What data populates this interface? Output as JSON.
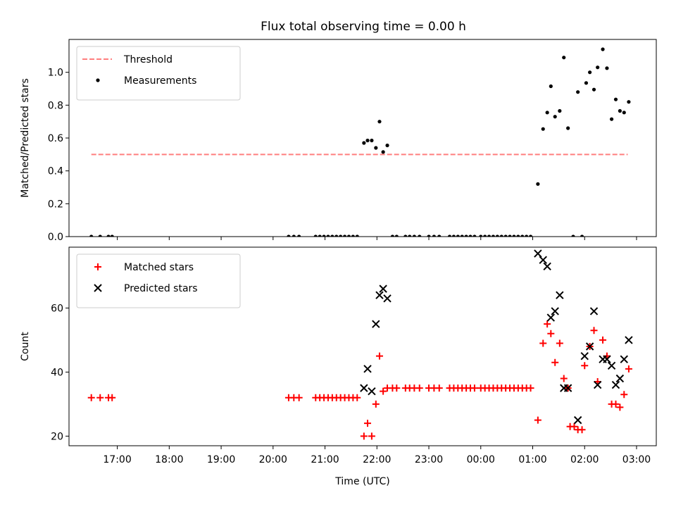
{
  "figure_title": "Flux total observing time = 0.00 h",
  "chart_data": [
    {
      "type": "scatter",
      "ylabel": "Matched/Predicted stars",
      "xlabel": "",
      "x_unit": "hours (UTC) counted continuously from 16:00",
      "xlim": [
        16.07,
        27.38
      ],
      "ylim": [
        0,
        1.2
      ],
      "yticks": [
        0.0,
        0.2,
        0.4,
        0.6,
        0.8,
        1.0
      ],
      "ytick_labels": [
        "0.0",
        "0.2",
        "0.4",
        "0.6",
        "0.8",
        "1.0"
      ],
      "legend_position": "upper-left",
      "threshold": {
        "name": "Threshold",
        "value": 0.5,
        "x_range": [
          16.5,
          26.83
        ],
        "color": "#ff7f7f",
        "style": "dashed"
      },
      "series": [
        {
          "name": "Measurements",
          "marker": "dot",
          "color": "#000000",
          "points": [
            [
              16.5,
              0
            ],
            [
              16.67,
              0
            ],
            [
              16.83,
              0
            ],
            [
              16.9,
              0
            ],
            [
              20.3,
              0
            ],
            [
              20.4,
              0
            ],
            [
              20.5,
              0
            ],
            [
              20.82,
              0
            ],
            [
              20.9,
              0
            ],
            [
              20.98,
              0
            ],
            [
              21.06,
              0
            ],
            [
              21.14,
              0
            ],
            [
              21.22,
              0
            ],
            [
              21.3,
              0
            ],
            [
              21.38,
              0
            ],
            [
              21.46,
              0
            ],
            [
              21.54,
              0
            ],
            [
              21.62,
              0
            ],
            [
              21.75,
              0.57
            ],
            [
              21.82,
              0.585
            ],
            [
              21.9,
              0.585
            ],
            [
              21.98,
              0.54
            ],
            [
              22.05,
              0.7
            ],
            [
              22.12,
              0.515
            ],
            [
              22.2,
              0.555
            ],
            [
              22.3,
              0
            ],
            [
              22.38,
              0
            ],
            [
              22.55,
              0
            ],
            [
              22.63,
              0
            ],
            [
              22.72,
              0
            ],
            [
              22.82,
              0
            ],
            [
              23.0,
              0
            ],
            [
              23.1,
              0
            ],
            [
              23.2,
              0
            ],
            [
              23.4,
              0
            ],
            [
              23.48,
              0
            ],
            [
              23.56,
              0
            ],
            [
              23.64,
              0
            ],
            [
              23.72,
              0
            ],
            [
              23.8,
              0
            ],
            [
              23.88,
              0
            ],
            [
              24.0,
              0
            ],
            [
              24.08,
              0
            ],
            [
              24.16,
              0
            ],
            [
              24.24,
              0
            ],
            [
              24.32,
              0
            ],
            [
              24.4,
              0
            ],
            [
              24.48,
              0
            ],
            [
              24.56,
              0
            ],
            [
              24.64,
              0
            ],
            [
              24.72,
              0
            ],
            [
              24.8,
              0
            ],
            [
              24.88,
              0
            ],
            [
              24.96,
              0
            ],
            [
              25.1,
              0.32
            ],
            [
              25.2,
              0.655
            ],
            [
              25.28,
              0.755
            ],
            [
              25.35,
              0.915
            ],
            [
              25.43,
              0.73
            ],
            [
              25.52,
              0.765
            ],
            [
              25.6,
              1.09
            ],
            [
              25.68,
              0.66
            ],
            [
              25.78,
              0
            ],
            [
              25.95,
              0
            ],
            [
              25.87,
              0.88
            ],
            [
              26.03,
              0.935
            ],
            [
              26.1,
              1.0
            ],
            [
              26.18,
              0.895
            ],
            [
              26.25,
              1.03
            ],
            [
              26.35,
              1.14
            ],
            [
              26.43,
              1.025
            ],
            [
              26.52,
              0.715
            ],
            [
              26.6,
              0.835
            ],
            [
              26.68,
              0.765
            ],
            [
              26.76,
              0.755
            ],
            [
              26.85,
              0.82
            ]
          ]
        }
      ]
    },
    {
      "type": "scatter",
      "ylabel": "Count",
      "xlabel": "Time (UTC)",
      "x_unit": "hours (UTC) counted continuously from 16:00",
      "xlim": [
        16.07,
        27.38
      ],
      "ylim": [
        17,
        79
      ],
      "yticks": [
        20,
        40,
        60
      ],
      "ytick_labels": [
        "20",
        "40",
        "60"
      ],
      "xticks": [
        17,
        18,
        19,
        20,
        21,
        22,
        23,
        24,
        25,
        26,
        27
      ],
      "xtick_labels": [
        "17:00",
        "18:00",
        "19:00",
        "20:00",
        "21:00",
        "22:00",
        "23:00",
        "00:00",
        "01:00",
        "02:00",
        "03:00"
      ],
      "legend_position": "upper-left",
      "series": [
        {
          "name": "Matched stars",
          "marker": "plus",
          "color": "#ff0000",
          "points": [
            [
              16.5,
              32
            ],
            [
              16.67,
              32
            ],
            [
              16.83,
              32
            ],
            [
              16.9,
              32
            ],
            [
              20.3,
              32
            ],
            [
              20.4,
              32
            ],
            [
              20.5,
              32
            ],
            [
              20.82,
              32
            ],
            [
              20.9,
              32
            ],
            [
              20.98,
              32
            ],
            [
              21.06,
              32
            ],
            [
              21.14,
              32
            ],
            [
              21.22,
              32
            ],
            [
              21.3,
              32
            ],
            [
              21.38,
              32
            ],
            [
              21.46,
              32
            ],
            [
              21.54,
              32
            ],
            [
              21.62,
              32
            ],
            [
              21.75,
              20
            ],
            [
              21.82,
              24
            ],
            [
              21.9,
              20
            ],
            [
              21.98,
              30
            ],
            [
              22.05,
              45
            ],
            [
              22.12,
              34
            ],
            [
              22.2,
              35
            ],
            [
              22.3,
              35
            ],
            [
              22.38,
              35
            ],
            [
              22.55,
              35
            ],
            [
              22.63,
              35
            ],
            [
              22.72,
              35
            ],
            [
              22.82,
              35
            ],
            [
              23.0,
              35
            ],
            [
              23.1,
              35
            ],
            [
              23.2,
              35
            ],
            [
              23.4,
              35
            ],
            [
              23.48,
              35
            ],
            [
              23.56,
              35
            ],
            [
              23.64,
              35
            ],
            [
              23.72,
              35
            ],
            [
              23.8,
              35
            ],
            [
              23.88,
              35
            ],
            [
              24.0,
              35
            ],
            [
              24.08,
              35
            ],
            [
              24.16,
              35
            ],
            [
              24.24,
              35
            ],
            [
              24.32,
              35
            ],
            [
              24.4,
              35
            ],
            [
              24.48,
              35
            ],
            [
              24.56,
              35
            ],
            [
              24.64,
              35
            ],
            [
              24.72,
              35
            ],
            [
              24.8,
              35
            ],
            [
              24.88,
              35
            ],
            [
              24.96,
              35
            ],
            [
              25.1,
              25
            ],
            [
              25.2,
              49
            ],
            [
              25.28,
              55
            ],
            [
              25.35,
              52
            ],
            [
              25.43,
              43
            ],
            [
              25.52,
              49
            ],
            [
              25.6,
              38
            ],
            [
              25.68,
              35
            ],
            [
              25.72,
              23
            ],
            [
              25.8,
              23
            ],
            [
              25.87,
              22
            ],
            [
              25.95,
              22
            ],
            [
              26.0,
              42
            ],
            [
              26.1,
              48
            ],
            [
              26.18,
              53
            ],
            [
              26.25,
              37
            ],
            [
              26.35,
              50
            ],
            [
              26.43,
              45
            ],
            [
              26.52,
              30
            ],
            [
              26.6,
              30
            ],
            [
              26.68,
              29
            ],
            [
              26.76,
              33
            ],
            [
              26.85,
              41
            ]
          ]
        },
        {
          "name": "Predicted stars",
          "marker": "x",
          "color": "#000000",
          "points": [
            [
              21.75,
              35
            ],
            [
              21.82,
              41
            ],
            [
              21.9,
              34
            ],
            [
              21.98,
              55
            ],
            [
              22.05,
              64
            ],
            [
              22.12,
              66
            ],
            [
              22.2,
              63
            ],
            [
              25.1,
              77
            ],
            [
              25.2,
              75
            ],
            [
              25.28,
              73
            ],
            [
              25.35,
              57
            ],
            [
              25.43,
              59
            ],
            [
              25.52,
              64
            ],
            [
              25.6,
              35
            ],
            [
              25.68,
              35
            ],
            [
              25.87,
              25
            ],
            [
              26.0,
              45
            ],
            [
              26.1,
              48
            ],
            [
              26.18,
              59
            ],
            [
              26.25,
              36
            ],
            [
              26.35,
              44
            ],
            [
              26.43,
              44
            ],
            [
              26.52,
              42
            ],
            [
              26.6,
              36
            ],
            [
              26.68,
              38
            ],
            [
              26.76,
              44
            ],
            [
              26.85,
              50
            ]
          ]
        }
      ]
    }
  ]
}
